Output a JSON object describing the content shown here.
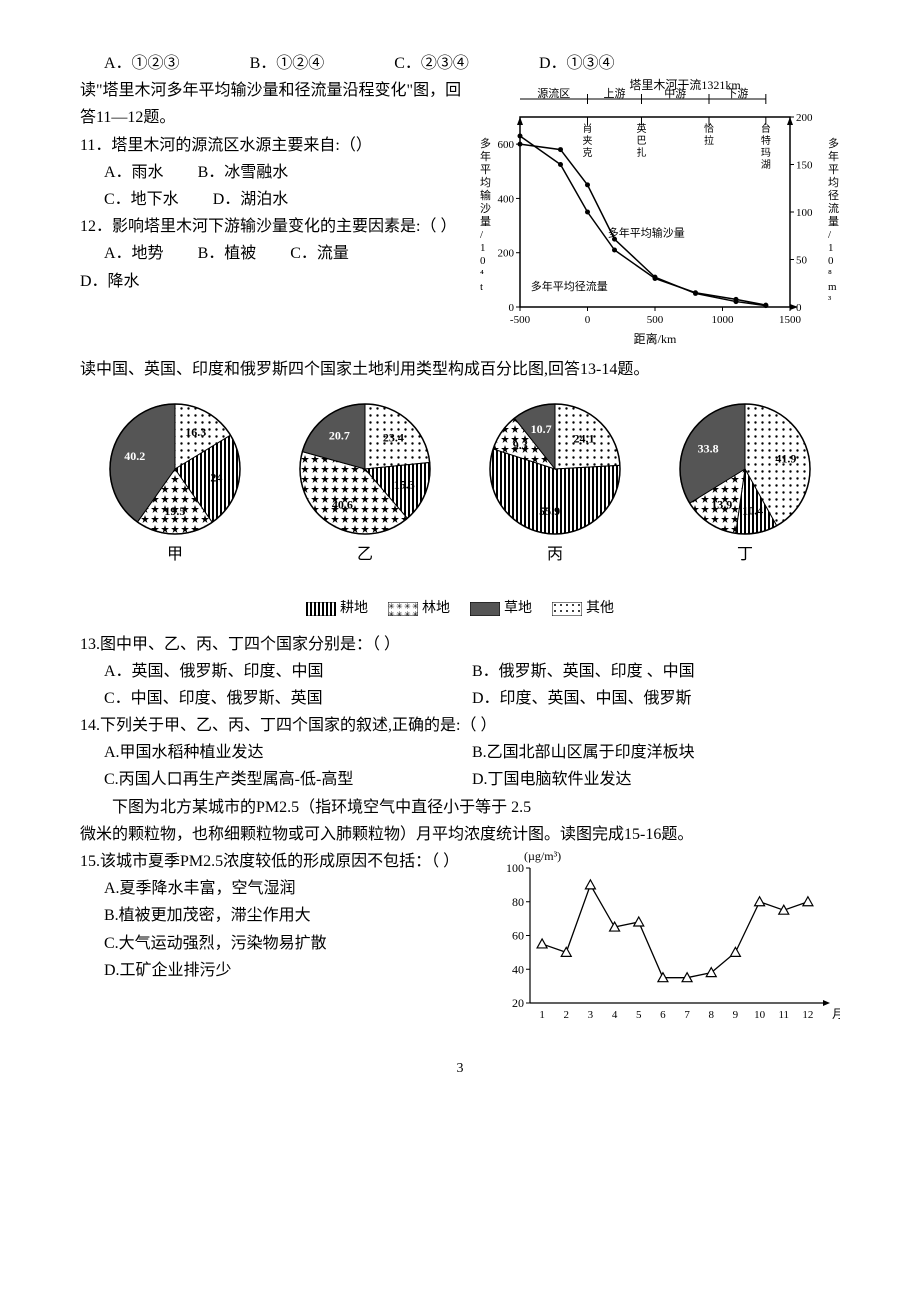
{
  "q10": {
    "opts": {
      "A": "A．①②③",
      "B": "B．①②④",
      "C": "C．②③④",
      "D": "D．①③④"
    }
  },
  "intro_11_12": "读\"塔里木河多年平均输沙量和径流量沿程变化\"图，回答11—12题。",
  "q11": {
    "stem": "11．塔里木河的源流区水源主要来自:（）",
    "opts": {
      "A": "A．雨水",
      "B": "B．冰雪融水",
      "C": "C．地下水",
      "D": "D．湖泊水"
    }
  },
  "q12": {
    "stem": "12．影响塔里木河下游输沙量变化的主要因素是:（ ）",
    "opts": {
      "A": "A．地势",
      "B": "B．植被",
      "C": "C．流量",
      "D": "D．降水"
    }
  },
  "tarim_chart": {
    "type": "line-dual-axis",
    "title_top": "塔里木河干流1321km",
    "regions": [
      "源流区",
      "上游",
      "中游",
      "下游"
    ],
    "markers": [
      "肖夹克",
      "英巴扎",
      "恰拉",
      "台特玛湖"
    ],
    "x_label": "距离/km",
    "y1_label": "多年平均输沙量/10⁴t",
    "y2_label": "多年平均径流量/10⁸m³",
    "x_ticks": [
      -500,
      0.0,
      500,
      1000,
      1500
    ],
    "y1_ticks": [
      0,
      200,
      400,
      600
    ],
    "y2_ticks": [
      0,
      50,
      100,
      150,
      200
    ],
    "series1_label": "多年平均输沙量",
    "series2_label": "多年平均径流量",
    "series_sediment": [
      [
        -500,
        600
      ],
      [
        -200,
        580
      ],
      [
        0,
        450
      ],
      [
        200,
        250
      ],
      [
        500,
        110
      ],
      [
        800,
        50
      ],
      [
        1100,
        20
      ],
      [
        1321,
        5
      ]
    ],
    "series_runoff": [
      [
        -500,
        180
      ],
      [
        -200,
        150
      ],
      [
        0,
        100
      ],
      [
        200,
        60
      ],
      [
        500,
        30
      ],
      [
        800,
        15
      ],
      [
        1100,
        8
      ],
      [
        1321,
        2
      ]
    ],
    "colors": {
      "axis": "#000",
      "line": "#000",
      "bg": "#fff"
    }
  },
  "intro_13_14": "读中国、英国、印度和俄罗斯四个国家土地利用类型构成百分比图,回答13-14题。",
  "pies": {
    "labels": [
      "甲",
      "乙",
      "丙",
      "丁"
    ],
    "legend": [
      "耕地",
      "林地",
      "草地",
      "其他"
    ],
    "patterns": [
      "stripes",
      "stars",
      "solid",
      "dots"
    ],
    "data": {
      "甲": {
        "耕地": 24,
        "林地": 19.5,
        "草地": 40.2,
        "其他": 16.3
      },
      "乙": {
        "耕地": 15.3,
        "林地": 40.6,
        "草地": 20.7,
        "其他": 23.4
      },
      "丙": {
        "耕地": 55.9,
        "林地": 9.3,
        "草地": 10.7,
        "其他": 24.1
      },
      "丁": {
        "耕地": 10.4,
        "林地": 13.9,
        "草地": 33.8,
        "其他": 41.9
      }
    },
    "colors": {
      "border": "#000"
    }
  },
  "q13": {
    "stem": "13.图中甲、乙、丙、丁四个国家分别是：（   ）",
    "opts": {
      "A": "A．英国、俄罗斯、印度、中国",
      "B": "B．俄罗斯、英国、印度 、中国",
      "C": "C．中国、印度、俄罗斯、英国",
      "D": "D．印度、英国、中国、俄罗斯"
    }
  },
  "q14": {
    "stem": "14.下列关于甲、乙、丙、丁四个国家的叙述,正确的是:（   ）",
    "opts": {
      "A": "A.甲国水稻种植业发达",
      "B": "B.乙国北部山区属于印度洋板块",
      "C": "C.丙国人口再生产类型属高-低-高型",
      "D": "D.丁国电脑软件业发达"
    }
  },
  "intro_15_16_a": "下图为北方某城市的PM2.5（指环境空气中直径小于等于 2.5",
  "intro_15_16_b": "微米的颗粒物，也称细颗粒物或可入肺颗粒物）月平均浓度统计图。读图完成15-16题。",
  "q15": {
    "stem": "15.该城市夏季PM2.5浓度较低的形成原因不包括：（ ）",
    "opts": {
      "A": "A.夏季降水丰富，空气湿润",
      "B": "B.植被更加茂密，滞尘作用大",
      "C": "C.大气运动强烈，污染物易扩散",
      "D": "D.工矿企业排污少"
    }
  },
  "pm25_chart": {
    "type": "line-markers",
    "y_label": "(µg/m³)",
    "x_label": "月",
    "x_ticks": [
      1,
      2,
      3,
      4,
      5,
      6,
      7,
      8,
      9,
      10,
      11,
      12
    ],
    "y_ticks": [
      20,
      40,
      60,
      80,
      100
    ],
    "values": [
      55,
      50,
      90,
      65,
      68,
      35,
      35,
      38,
      50,
      80,
      75,
      80
    ],
    "marker": "triangle",
    "colors": {
      "axis": "#000",
      "line": "#000",
      "marker_fill": "#fff",
      "marker_stroke": "#000"
    }
  },
  "page_number": "3"
}
